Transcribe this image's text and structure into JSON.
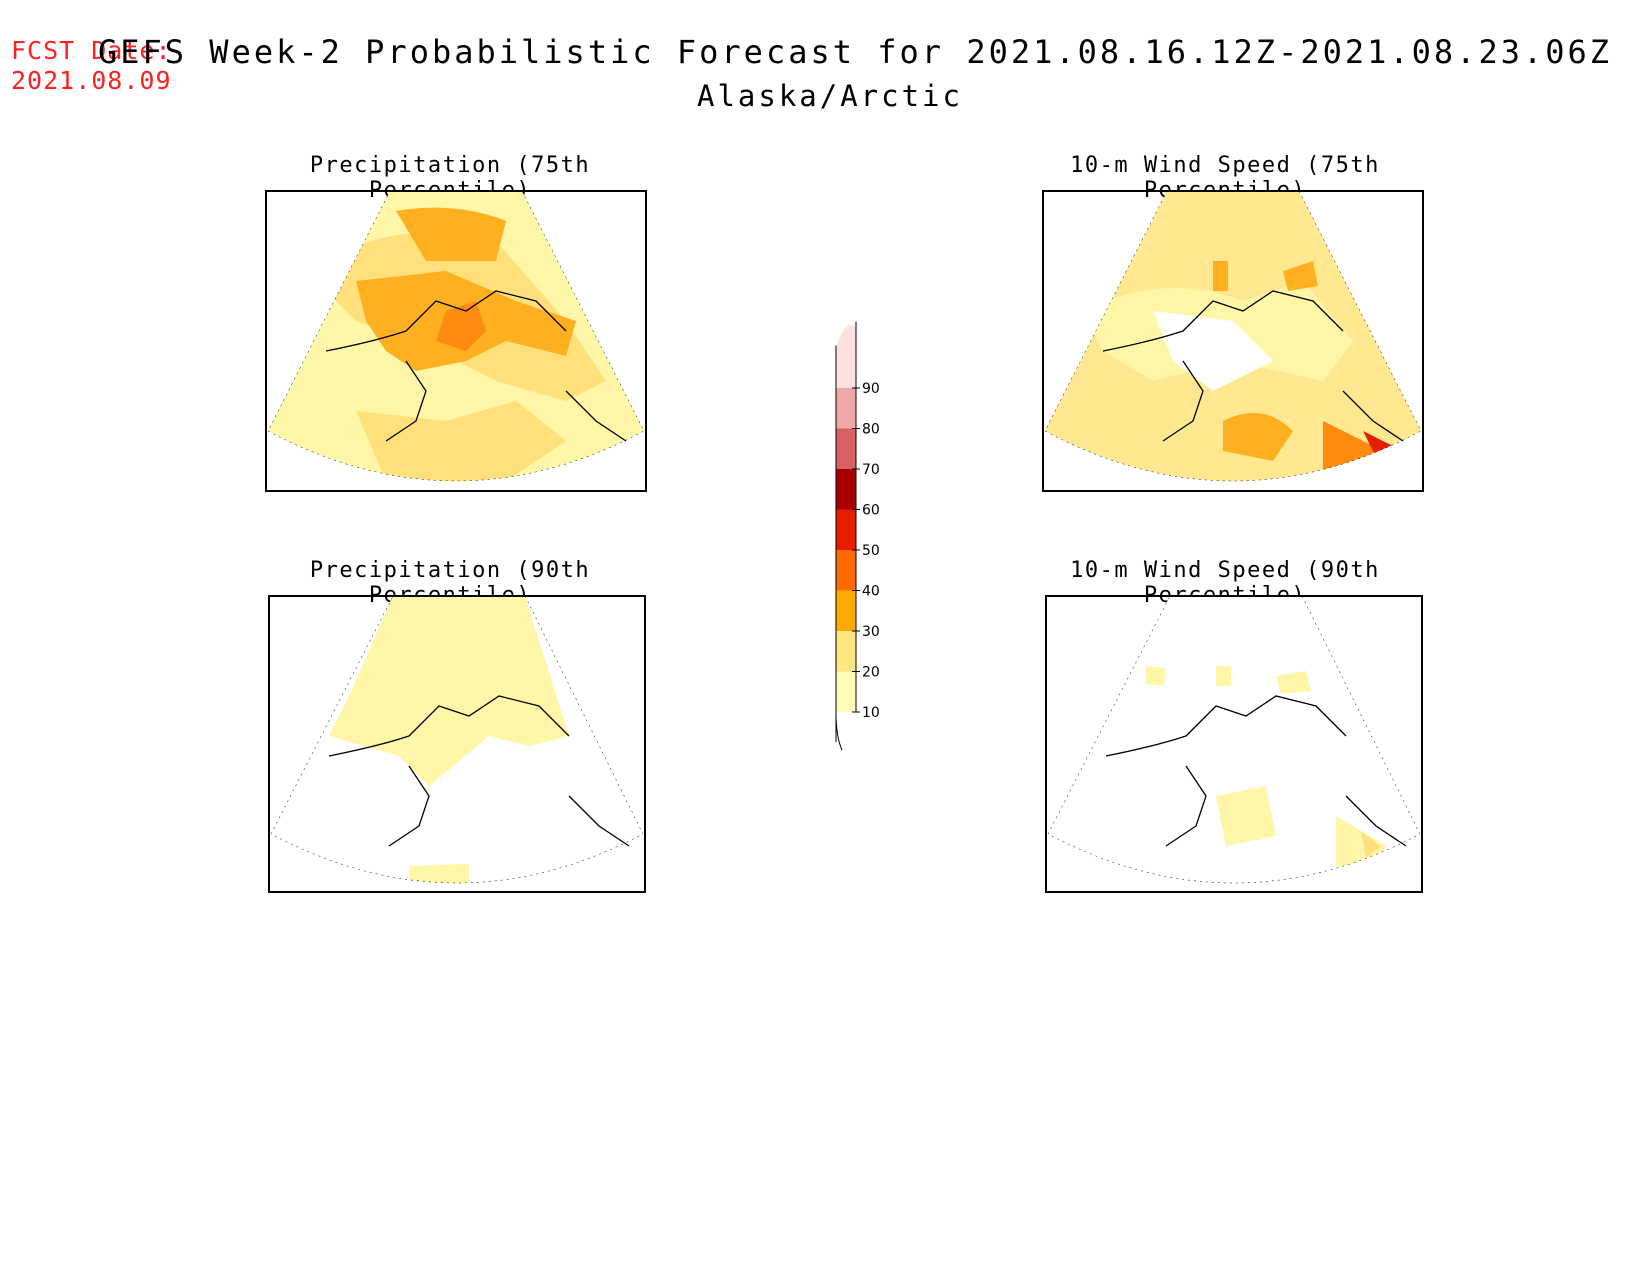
{
  "header": {
    "fcst_label": "FCST Date:",
    "fcst_date": "2021.08.09",
    "title": "GEFS Week-2 Probabilistic Forecast for 2021.08.16.12Z-2021.08.23.06Z",
    "region": "Alaska/Arctic"
  },
  "panels": [
    {
      "title": "Precipitation (75th Percentile)"
    },
    {
      "title": "10-m Wind Speed (75th Percentile)"
    },
    {
      "title": "Precipitation (90th Percentile)"
    },
    {
      "title": "10-m Wind Speed (90th Percentile)"
    }
  ],
  "colorbar": {
    "levels": [
      "10",
      "20",
      "30",
      "40",
      "50",
      "60",
      "70",
      "80",
      "90"
    ],
    "colors": [
      "#fffbb8",
      "#ffe680",
      "#ffaa00",
      "#ff6a00",
      "#e81c00",
      "#a80000",
      "#d86060",
      "#f0a8a8",
      "#ffe0e0"
    ]
  }
}
